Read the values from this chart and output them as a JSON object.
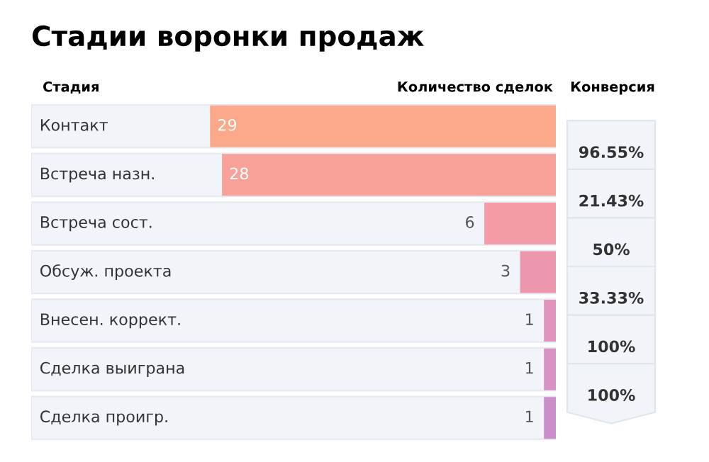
{
  "chart_data": {
    "type": "bar",
    "orientation": "horizontal",
    "title": "Стадии воронки продаж",
    "ylabel": "Стадия",
    "xlabel": "Количество сделок",
    "categories": [
      "Контакт",
      "Встреча назн.",
      "Встреча сост.",
      "Обсуж. проекта",
      "Внесен. коррект.",
      "Сделка выиграна",
      "Сделка проигр."
    ],
    "values": [
      29,
      28,
      6,
      3,
      1,
      1,
      1
    ],
    "colors": [
      "#fca88b",
      "#f8a199",
      "#f39ba6",
      "#ec97ae",
      "#e194bb",
      "#d693c3",
      "#ca8fcb"
    ],
    "xlim": [
      44,
      0
    ],
    "tick_labels": false,
    "data_labels": true,
    "annotations": [
      "Конверсия",
      "96.55%",
      "21.43%",
      "50%",
      "33.33%",
      "100%",
      "100%"
    ]
  }
}
